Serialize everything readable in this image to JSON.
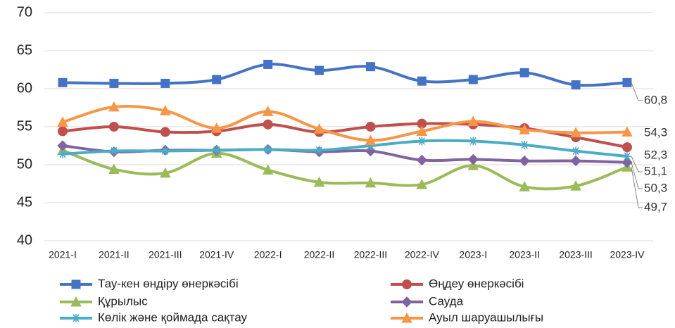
{
  "chart_data": {
    "type": "line",
    "categories": [
      "2021-I",
      "2021-II",
      "2021-III",
      "2021-IV",
      "2022-I",
      "2022-II",
      "2022-III",
      "2022-IV",
      "2023-I",
      "2023-II",
      "2023-III",
      "2023-IV"
    ],
    "ylim": [
      40,
      70
    ],
    "yticks": [
      40,
      45,
      50,
      55,
      60,
      65,
      70
    ],
    "grid": true,
    "smooth": true,
    "series": [
      {
        "name": "Тау-кен өндіру өнеркәсібі",
        "color": "#4472c4",
        "marker": "square",
        "values": [
          60.8,
          60.7,
          60.7,
          61.2,
          63.2,
          62.4,
          62.9,
          61.0,
          61.2,
          62.1,
          60.5,
          60.8
        ],
        "value_labels": [
          null,
          null,
          null,
          null,
          null,
          null,
          null,
          null,
          null,
          null,
          null,
          "60,8"
        ]
      },
      {
        "name": "Өңдеу өнеркәсібі",
        "color": "#c0504d",
        "marker": "circle",
        "values": [
          54.4,
          55.0,
          54.3,
          54.4,
          55.3,
          54.3,
          55.0,
          55.4,
          55.3,
          54.8,
          53.6,
          52.3
        ],
        "value_labels": [
          null,
          null,
          null,
          null,
          null,
          null,
          null,
          null,
          null,
          null,
          null,
          "52,3"
        ]
      },
      {
        "name": "Құрылыс",
        "color": "#9bbb59",
        "marker": "triangle",
        "values": [
          51.9,
          49.4,
          48.9,
          51.5,
          49.3,
          47.7,
          47.6,
          47.4,
          49.9,
          47.1,
          47.2,
          49.7
        ],
        "value_labels": [
          null,
          null,
          null,
          null,
          null,
          null,
          null,
          null,
          null,
          null,
          null,
          "49,7"
        ]
      },
      {
        "name": "Сауда",
        "color": "#8064a2",
        "marker": "diamond",
        "values": [
          52.5,
          51.7,
          51.9,
          51.9,
          52.0,
          51.7,
          51.8,
          50.6,
          50.7,
          50.5,
          50.5,
          50.3
        ],
        "value_labels": [
          null,
          null,
          null,
          null,
          null,
          null,
          null,
          null,
          null,
          null,
          null,
          "50,3"
        ]
      },
      {
        "name": "Көлік және қоймада сақтау",
        "color": "#4bacc6",
        "marker": "asterisk",
        "values": [
          51.4,
          51.8,
          51.8,
          51.9,
          52.0,
          51.9,
          52.5,
          53.1,
          53.1,
          52.6,
          51.8,
          51.1
        ],
        "value_labels": [
          null,
          null,
          null,
          null,
          null,
          null,
          null,
          null,
          null,
          null,
          null,
          "51,1"
        ]
      },
      {
        "name": "Ауыл шаруашылығы",
        "color": "#f79646",
        "marker": "triangle",
        "values": [
          55.6,
          57.6,
          57.1,
          54.8,
          57.0,
          54.7,
          53.2,
          54.4,
          55.7,
          54.6,
          54.2,
          54.3
        ],
        "value_labels": [
          null,
          null,
          null,
          null,
          null,
          null,
          null,
          null,
          null,
          null,
          null,
          "54,3"
        ]
      }
    ]
  }
}
